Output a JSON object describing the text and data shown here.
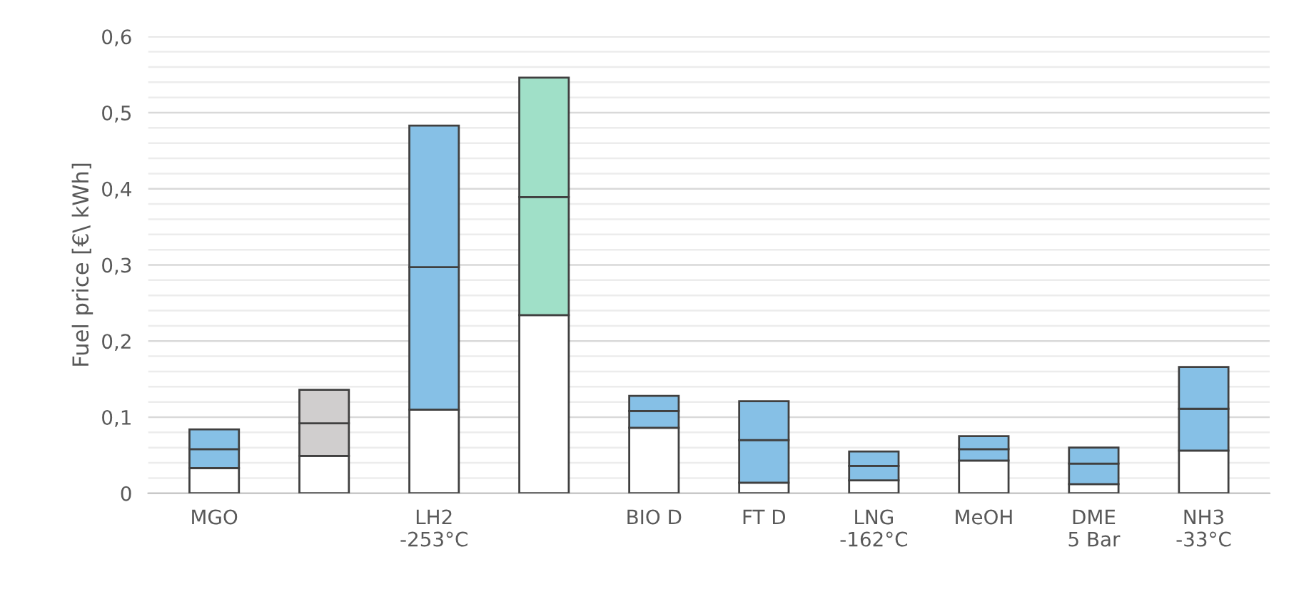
{
  "chart_data": {
    "type": "bar",
    "stacked": true,
    "ylabel": "Fuel price [€\\ kWh]",
    "categories": [
      "MGO",
      null,
      "LH2\n-253°C",
      null,
      "BIO D",
      "FT D",
      "LNG\n-162°C",
      "MeOH",
      "DME\n5 Bar",
      "NH3\n-33°C"
    ],
    "ylim": [
      0,
      0.6
    ],
    "yticks": [
      0,
      {
        "value": 0.02,
        "label": null
      },
      {
        "value": 0.04,
        "label": null
      },
      {
        "value": 0.06,
        "label": null
      },
      {
        "value": 0.08,
        "label": null
      },
      {
        "value": 0.1,
        "label": "0,1"
      },
      {
        "value": 0.12,
        "label": null
      },
      {
        "value": 0.14,
        "label": null
      },
      {
        "value": 0.16,
        "label": null
      },
      {
        "value": 0.18,
        "label": null
      },
      {
        "value": 0.2,
        "label": "0,2"
      },
      {
        "value": 0.22,
        "label": null
      },
      {
        "value": 0.24,
        "label": null
      },
      {
        "value": 0.26,
        "label": null
      },
      {
        "value": 0.28,
        "label": null
      },
      {
        "value": 0.3,
        "label": "0,3"
      },
      {
        "value": 0.32,
        "label": null
      },
      {
        "value": 0.34,
        "label": null
      },
      {
        "value": 0.36,
        "label": null
      },
      {
        "value": 0.38,
        "label": null
      },
      {
        "value": 0.4,
        "label": "0,4"
      },
      {
        "value": 0.42,
        "label": null
      },
      {
        "value": 0.44,
        "label": null
      },
      {
        "value": 0.46,
        "label": null
      },
      {
        "value": 0.48,
        "label": null
      },
      {
        "value": 0.5,
        "label": "0,5"
      },
      {
        "value": 0.52,
        "label": null
      },
      {
        "value": 0.54,
        "label": null
      },
      {
        "value": 0.56,
        "label": null
      },
      {
        "value": 0.58,
        "label": null
      },
      {
        "value": 0.6,
        "label": "0,6"
      }
    ],
    "grid": "y",
    "legend": false,
    "series": [
      {
        "color": "#ffffff",
        "values": [
          0.033,
          0.049,
          0.11,
          0.234,
          0.086,
          0.014,
          0.017,
          0.043,
          0.012,
          0.056
        ]
      },
      {
        "colors": [
          "#86c0e6",
          "#d0cece",
          "#86c0e6",
          "#a0e0c8",
          "#86c0e6",
          "#86c0e6",
          "#86c0e6",
          "#86c0e6",
          "#86c0e6",
          "#86c0e6"
        ],
        "values": [
          0.025,
          0.043,
          0.187,
          0.155,
          0.022,
          0.056,
          0.019,
          0.015,
          0.027,
          0.055
        ]
      },
      {
        "colors": [
          "#86c0e6",
          "#d0cece",
          "#86c0e6",
          "#a0e0c8",
          "#86c0e6",
          "#86c0e6",
          "#86c0e6",
          "#86c0e6",
          "#86c0e6",
          "#86c0e6"
        ],
        "values": [
          0.026,
          0.044,
          0.186,
          0.157,
          0.02,
          0.051,
          0.019,
          0.017,
          0.021,
          0.055
        ]
      }
    ]
  }
}
